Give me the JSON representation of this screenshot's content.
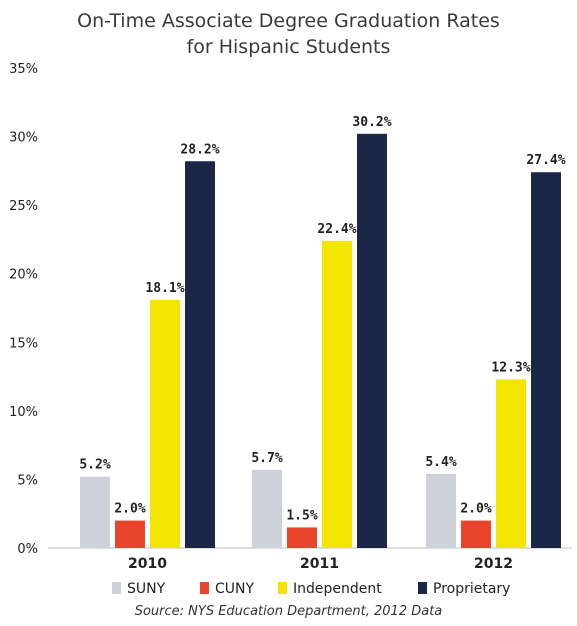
{
  "chart_data": {
    "type": "bar",
    "title_lines": [
      "On-Time Associate Degree Graduation Rates",
      "for Hispanic Students"
    ],
    "categories": [
      "2010",
      "2011",
      "2012"
    ],
    "series": [
      {
        "name": "SUNY",
        "color": "#cfd2da",
        "values": [
          5.2,
          5.7,
          5.4
        ],
        "labels": [
          "5.2%",
          "5.7%",
          "5.4%"
        ]
      },
      {
        "name": "CUNY",
        "color": "#e8452c",
        "values": [
          2.0,
          1.5,
          2.0
        ],
        "labels": [
          "2.0%",
          "1.5%",
          "2.0%"
        ]
      },
      {
        "name": "Independent",
        "color": "#f2e600",
        "values": [
          18.1,
          22.4,
          12.3
        ],
        "labels": [
          "18.1%",
          "22.4%",
          "12.3%"
        ]
      },
      {
        "name": "Proprietary",
        "color": "#1c2647",
        "values": [
          28.2,
          30.2,
          27.4
        ],
        "labels": [
          "28.2%",
          "30.2%",
          "27.4%"
        ]
      }
    ],
    "ylim": [
      0,
      35
    ],
    "yticks": [
      0,
      5,
      10,
      15,
      20,
      25,
      30,
      35
    ],
    "ytick_labels": [
      "0%",
      "5%",
      "10%",
      "15%",
      "20%",
      "25%",
      "30%",
      "35%"
    ],
    "legend_position": "bottom",
    "grid": false,
    "source": "Source: NYS Education Department, 2012 Data"
  }
}
